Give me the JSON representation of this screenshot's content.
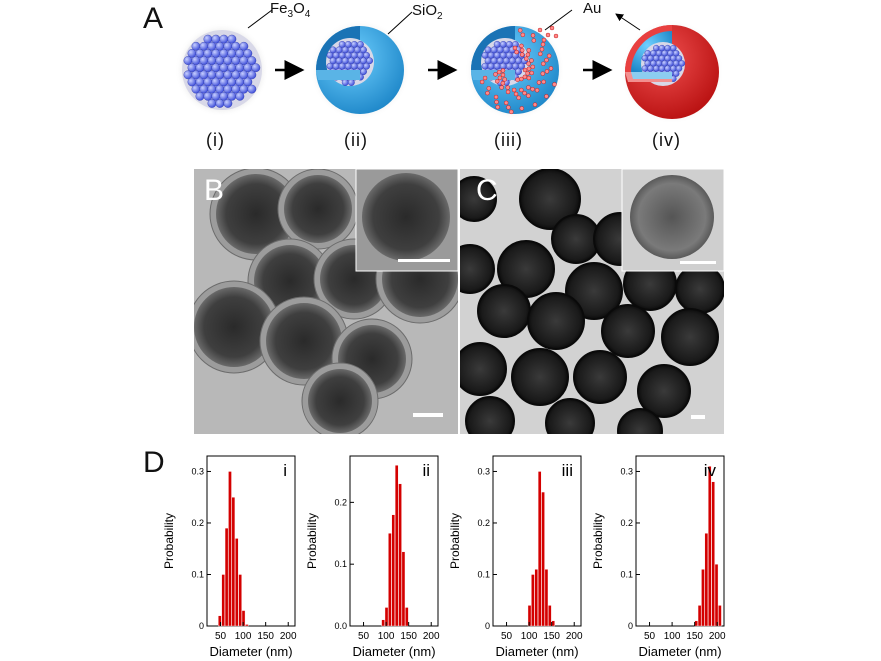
{
  "panel_a": {
    "letter": "A",
    "label_fe3o4": {
      "base": "Fe",
      "sub1": "3",
      "mid": "O",
      "sub2": "4"
    },
    "label_sio2": {
      "base": "SiO",
      "sub": "2"
    },
    "label_au": "Au",
    "steps": [
      "(i)",
      "(ii)",
      "(iii)",
      "(iv)"
    ]
  },
  "panel_b": {
    "letter": "B"
  },
  "panel_c": {
    "letter": "C"
  },
  "panel_d": {
    "letter": "D"
  },
  "colors": {
    "bar": "#d40000",
    "silica": "#2a9bd8",
    "gold": "#d92020",
    "core": "#5060e8"
  },
  "chart_data": [
    {
      "type": "bar",
      "tag": "i",
      "xlabel": "Diameter (nm)",
      "ylabel": "Probability",
      "xlim": [
        20,
        215
      ],
      "ylim": [
        0,
        0.33
      ],
      "xticks": [
        "50",
        "100",
        "150",
        "200"
      ],
      "yticks": [
        "0",
        "0.1",
        "0.2",
        "0.3"
      ],
      "bin_width": 7.5,
      "bins": [
        45,
        52.5,
        60,
        67.5,
        75,
        82.5,
        90,
        97.5,
        105
      ],
      "values": [
        0.02,
        0.1,
        0.19,
        0.3,
        0.25,
        0.17,
        0.1,
        0.03,
        0.003
      ]
    },
    {
      "type": "bar",
      "tag": "ii",
      "xlabel": "Diameter (nm)",
      "ylabel": "Probability",
      "xlim": [
        20,
        215
      ],
      "ylim": [
        0,
        0.275
      ],
      "xticks": [
        "50",
        "100",
        "150",
        "200"
      ],
      "yticks": [
        "0.0",
        "0.1",
        "0.2"
      ],
      "bin_width": 7.5,
      "bins": [
        90,
        97.5,
        105,
        112.5,
        120,
        127.5,
        135,
        142.5
      ],
      "values": [
        0.01,
        0.03,
        0.15,
        0.18,
        0.26,
        0.23,
        0.12,
        0.03
      ]
    },
    {
      "type": "bar",
      "tag": "iii",
      "xlabel": "Diameter (nm)",
      "ylabel": "Probability",
      "xlim": [
        20,
        215
      ],
      "ylim": [
        0,
        0.33
      ],
      "xticks": [
        "50",
        "100",
        "150",
        "200"
      ],
      "yticks": [
        "0",
        "0.1",
        "0.2",
        "0.3"
      ],
      "bin_width": 7.5,
      "bins": [
        97.5,
        105,
        112.5,
        120,
        127.5,
        135,
        142.5,
        150
      ],
      "values": [
        0.04,
        0.1,
        0.11,
        0.3,
        0.26,
        0.11,
        0.04,
        0.01
      ]
    },
    {
      "type": "bar",
      "tag": "iv",
      "xlabel": "Diameter (nm)",
      "ylabel": "Probability",
      "xlim": [
        20,
        215
      ],
      "ylim": [
        0,
        0.33
      ],
      "xticks": [
        "50",
        "100",
        "150",
        "200"
      ],
      "yticks": [
        "0",
        "0.1",
        "0.2",
        "0.3"
      ],
      "bin_width": 7.5,
      "bins": [
        150,
        157.5,
        165,
        172.5,
        180,
        187.5,
        195,
        202.5
      ],
      "values": [
        0.01,
        0.04,
        0.11,
        0.18,
        0.31,
        0.28,
        0.12,
        0.04
      ]
    }
  ]
}
